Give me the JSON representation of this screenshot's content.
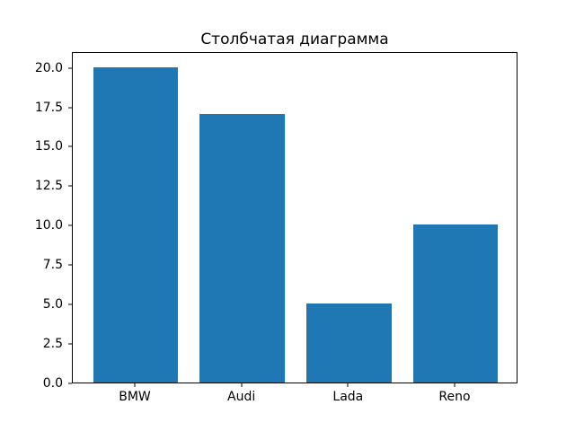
{
  "chart_data": {
    "type": "bar",
    "title": "Столбчатая диаграмма",
    "categories": [
      "BMW",
      "Audi",
      "Lada",
      "Reno"
    ],
    "values": [
      20,
      17,
      5,
      10
    ],
    "xlabel": "",
    "ylabel": "",
    "ylim": [
      0,
      21
    ],
    "y_ticks": [
      0.0,
      2.5,
      5.0,
      7.5,
      10.0,
      12.5,
      15.0,
      17.5,
      20.0
    ],
    "y_tick_labels": [
      "0.0",
      "2.5",
      "5.0",
      "7.5",
      "10.0",
      "12.5",
      "15.0",
      "17.5",
      "20.0"
    ],
    "grid": false,
    "legend": null,
    "bar_color": "#1f77b4",
    "frame_color": "#000000",
    "text_color": "#000000",
    "background_color": "#ffffff",
    "bar_width_data_units": 0.8
  }
}
